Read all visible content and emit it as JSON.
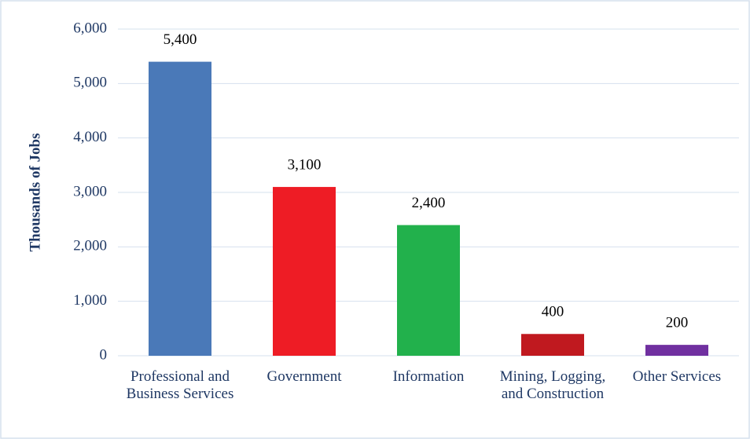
{
  "chart_data": {
    "type": "bar",
    "y_label": "Thousands of Jobs",
    "categories": [
      "Professional and Business Services",
      "Government",
      "Information",
      "Mining, Logging, and Construction",
      "Other Services"
    ],
    "values": [
      5400,
      3100,
      2400,
      400,
      200
    ],
    "value_labels": [
      "5,400",
      "3,100",
      "2,400",
      "400",
      "200"
    ],
    "colors": [
      "#4a79b8",
      "#ee1c25",
      "#22b14c",
      "#c0191f",
      "#7030a0"
    ],
    "ylim": [
      0,
      6000
    ],
    "yticks": [
      0,
      {
        "value": 1000,
        "label": "1,000"
      },
      {
        "value": 2000,
        "label": "2,000"
      },
      {
        "value": 3000,
        "label": "3,000"
      },
      {
        "value": 4000,
        "label": "4,000"
      },
      {
        "value": 5000,
        "label": "5,000"
      },
      {
        "value": 6000,
        "label": "6,000"
      }
    ],
    "grid": true
  }
}
